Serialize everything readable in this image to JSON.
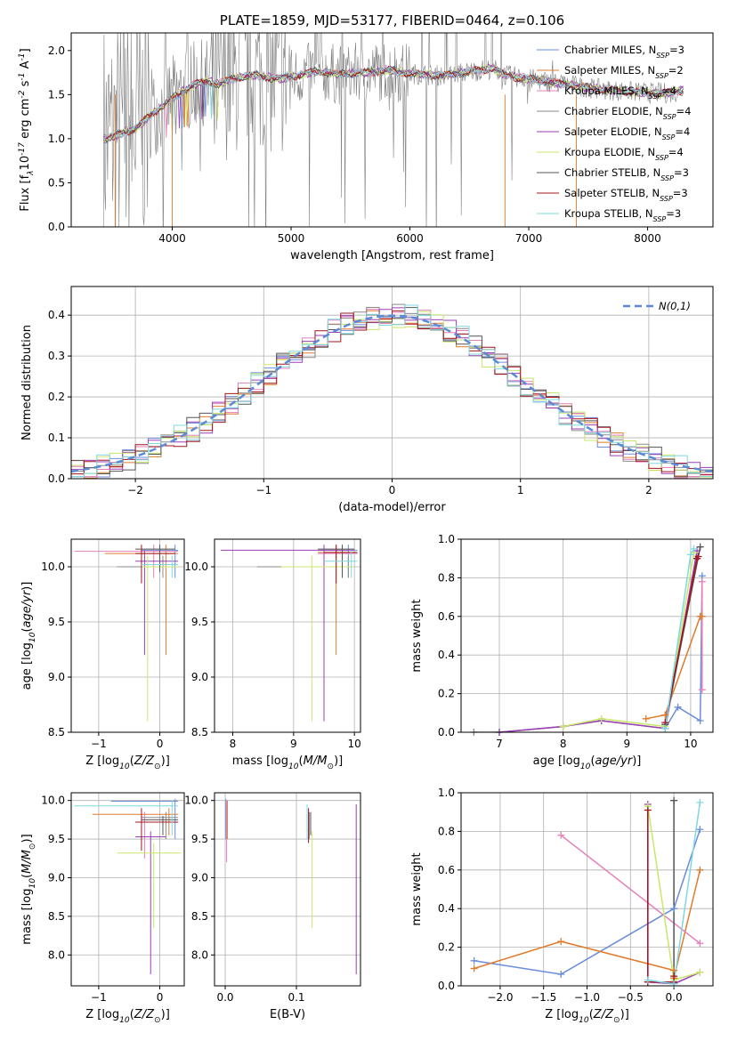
{
  "colors": [
    "#6a8ddb",
    "#e07b2c",
    "#e57fb8",
    "#8a8a8a",
    "#9a3fb5",
    "#c8e86a",
    "#555555",
    "#a3141e",
    "#7fd8e0"
  ],
  "chart_data": [
    {
      "id": "spectrum",
      "type": "line",
      "title": "PLATE=1859, MJD=53177, FIBERID=0464, z=0.106",
      "xlabel": "wavelength [Angstrom, rest frame]",
      "ylabel": "Flux [f$_\\lambda$10$^{-17}$ erg cm$^{-2}$ s$^{-1}$ A$^{-1}$]",
      "xlim": [
        3150,
        8550
      ],
      "ylim": [
        0,
        2.2
      ],
      "xticks": [
        4000,
        5000,
        6000,
        7000,
        8000
      ],
      "yticks": [
        0.0,
        0.5,
        1.0,
        1.5,
        2.0
      ],
      "grid": false,
      "legend_position": "top-right",
      "legend": [
        "Chabrier MILES, N$_{SSP}$=3",
        "Salpeter MILES, N$_{SSP}$=2",
        "Kroupa MILES, N$_{SSP}$=4",
        "Chabrier ELODIE, N$_{SSP}$=4",
        "Salpeter ELODIE, N$_{SSP}$=4",
        "Kroupa ELODIE, N$_{SSP}$=4",
        "Chabrier STELIB, N$_{SSP}$=3",
        "Salpeter STELIB, N$_{SSP}$=3",
        "Kroupa STELIB, N$_{SSP}$=3"
      ],
      "model_x": [
        3420,
        3500,
        3600,
        3700,
        3800,
        3900,
        4000,
        4100,
        4200,
        4300,
        4400,
        4500,
        4600,
        4700,
        4800,
        4900,
        5000,
        5100,
        5200,
        5300,
        5400,
        5500,
        5600,
        5700,
        5800,
        5900,
        6000,
        6100,
        6200,
        6300,
        6400,
        6500,
        6600,
        6700,
        6800,
        6900,
        7000,
        7100,
        7200,
        7300,
        7400,
        7500,
        7600,
        7700,
        7800,
        7900,
        8000,
        8100,
        8200,
        8300
      ],
      "model_y": [
        1.0,
        1.02,
        1.08,
        1.12,
        1.25,
        1.35,
        1.45,
        1.55,
        1.62,
        1.65,
        1.62,
        1.68,
        1.7,
        1.72,
        1.7,
        1.68,
        1.7,
        1.73,
        1.76,
        1.75,
        1.73,
        1.74,
        1.75,
        1.76,
        1.78,
        1.76,
        1.74,
        1.73,
        1.72,
        1.72,
        1.74,
        1.76,
        1.78,
        1.8,
        1.72,
        1.7,
        1.68,
        1.66,
        1.64,
        1.62,
        1.6,
        1.58,
        1.56,
        1.55,
        1.54,
        1.53,
        1.52,
        1.52,
        1.52,
        1.55
      ]
    },
    {
      "id": "residuals",
      "type": "line",
      "xlabel": "(data-model)/error",
      "ylabel": "Normed distribution",
      "xlim": [
        -2.5,
        2.5
      ],
      "ylim": [
        0,
        0.47
      ],
      "xticks": [
        -2,
        -1,
        0,
        1,
        2
      ],
      "yticks": [
        0.0,
        0.1,
        0.2,
        0.3,
        0.4
      ],
      "grid": true,
      "legend_position": "top-right",
      "legend": [
        "$\\mathcal{N}(0,1)$"
      ]
    },
    {
      "id": "age-vs-Z",
      "type": "scatter",
      "xlabel": "Z [log$_{10}$($Z/Z_\\odot$)]",
      "ylabel": "age  [log$_{10}$($age/yr$)]",
      "xlim": [
        -1.45,
        0.4
      ],
      "ylim": [
        8.5,
        10.25
      ],
      "xticks": [
        -1,
        0
      ],
      "yticks": [
        8.5,
        9.0,
        9.5,
        10.0
      ],
      "grid": true
    },
    {
      "id": "age-vs-mass",
      "type": "scatter",
      "xlabel": "mass [log$_{10}$($M/M_\\odot$)]",
      "xlim": [
        7.7,
        10.1
      ],
      "ylim": [
        8.5,
        10.25
      ],
      "xticks": [
        8,
        9,
        10
      ],
      "yticks": [
        8.5,
        9.0,
        9.5,
        10.0
      ],
      "grid": true
    },
    {
      "id": "weight-vs-age",
      "type": "line",
      "xlabel": "age  [log$_{10}$($age/yr$)]",
      "ylabel": "mass weight",
      "xlim": [
        6.4,
        10.35
      ],
      "ylim": [
        0,
        1.0
      ],
      "xticks": [
        7,
        8,
        9,
        10
      ],
      "yticks": [
        0.0,
        0.2,
        0.4,
        0.6,
        0.8,
        1.0
      ],
      "grid": true,
      "series": [
        {
          "x": [
            9.6,
            9.8,
            10.15,
            10.18
          ],
          "y": [
            0.02,
            0.13,
            0.06,
            0.81
          ]
        },
        {
          "x": [
            9.3,
            9.6,
            10.15,
            10.18
          ],
          "y": [
            0.07,
            0.09,
            0.6,
            0.6
          ]
        },
        {
          "x": [
            10.18,
            10.18
          ],
          "y": [
            0.78,
            0.22
          ]
        },
        {
          "x": [
            6.6,
            7.0,
            8.0,
            8.6,
            9.6,
            10.1
          ],
          "y": [
            0.0,
            0.0,
            0.03,
            0.06,
            0.02,
            0.9
          ]
        },
        {
          "x": [
            7.0,
            8.0,
            8.6,
            9.6,
            10.1
          ],
          "y": [
            0.0,
            0.03,
            0.06,
            0.02,
            0.94
          ]
        },
        {
          "x": [
            8.0,
            8.6,
            9.6,
            10.05
          ],
          "y": [
            0.03,
            0.07,
            0.03,
            0.93
          ]
        },
        {
          "x": [
            9.6,
            10.15
          ],
          "y": [
            0.04,
            0.96
          ]
        },
        {
          "x": [
            9.6,
            10.1,
            10.12
          ],
          "y": [
            0.05,
            0.9,
            0.91
          ]
        },
        {
          "x": [
            9.6,
            10.0,
            10.05
          ],
          "y": [
            0.02,
            0.92,
            0.95
          ]
        }
      ]
    },
    {
      "id": "mass-vs-Z",
      "type": "scatter",
      "xlabel": "Z [log$_{10}$($Z/Z_\\odot$)]",
      "ylabel": "mass [log$_{10}$($M/M_\\odot$)]",
      "xlim": [
        -1.45,
        0.4
      ],
      "ylim": [
        7.6,
        10.1
      ],
      "xticks": [
        -1,
        0
      ],
      "yticks": [
        8.0,
        8.5,
        9.0,
        9.5,
        10.0
      ],
      "grid": true
    },
    {
      "id": "mass-vs-EBV",
      "type": "scatter",
      "xlabel": "E(B-V)",
      "xlim": [
        -0.015,
        0.19
      ],
      "ylim": [
        7.6,
        10.1
      ],
      "xticks": [
        0.0,
        0.1
      ],
      "yticks": [
        8.0,
        8.5,
        9.0,
        9.5,
        10.0
      ],
      "grid": true
    },
    {
      "id": "weight-vs-Z",
      "type": "line",
      "xlabel": "Z [log$_{10}$($Z/Z_\\odot$)]",
      "ylabel": "mass weight",
      "xlim": [
        -2.45,
        0.45
      ],
      "ylim": [
        0,
        1.0
      ],
      "xticks": [
        -2.0,
        -1.5,
        -1.0,
        -0.5,
        0.0
      ],
      "yticks": [
        0.0,
        0.2,
        0.4,
        0.6,
        0.8,
        1.0
      ],
      "grid": true,
      "series": [
        {
          "x": [
            -2.3,
            -1.3,
            0.0,
            0.3
          ],
          "y": [
            0.13,
            0.06,
            0.4,
            0.81
          ]
        },
        {
          "x": [
            -2.3,
            -1.3,
            0.0,
            0.0,
            0.3
          ],
          "y": [
            0.09,
            0.23,
            0.08,
            0.04,
            0.6
          ]
        },
        {
          "x": [
            -1.3,
            0.3
          ],
          "y": [
            0.78,
            0.22
          ]
        },
        {
          "x": [
            -0.3,
            0.0
          ],
          "y": [
            0.02,
            0.02
          ]
        },
        {
          "x": [
            -0.3,
            -0.3,
            0.0,
            0.3
          ],
          "y": [
            0.94,
            0.02,
            0.01,
            0.07
          ]
        },
        {
          "x": [
            -0.3,
            0.0,
            0.3
          ],
          "y": [
            0.93,
            0.03,
            0.07
          ]
        },
        {
          "x": [
            0.0,
            0.0
          ],
          "y": [
            0.01,
            0.96
          ]
        },
        {
          "x": [
            -0.3,
            -0.3,
            0.0,
            0.0
          ],
          "y": [
            0.91,
            0.02,
            0.02,
            0.05
          ]
        },
        {
          "x": [
            -0.3,
            0.0,
            0.3
          ],
          "y": [
            0.03,
            0.01,
            0.95
          ]
        }
      ]
    }
  ]
}
